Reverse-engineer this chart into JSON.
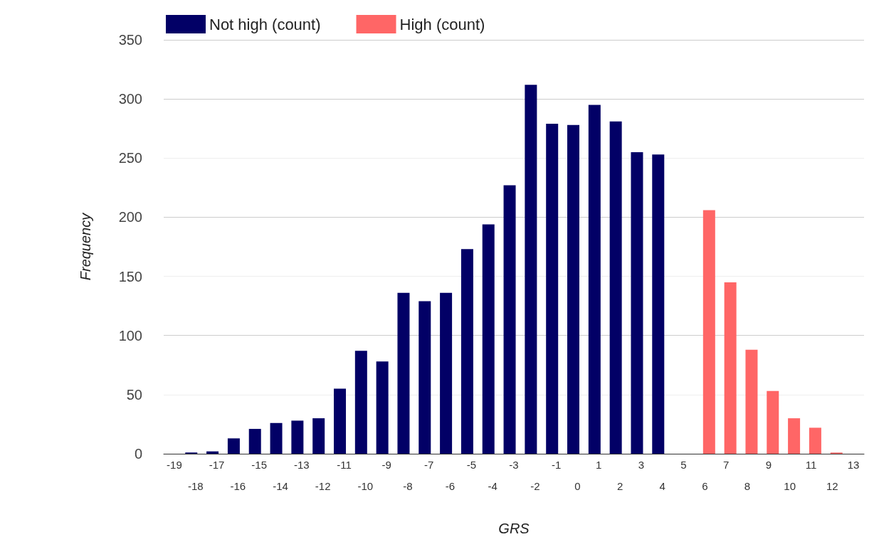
{
  "chart_data": {
    "type": "bar",
    "xlabel": "GRS",
    "ylabel": "Frequency",
    "categories": [
      "-19",
      "-18",
      "-17",
      "-16",
      "-15",
      "-14",
      "-13",
      "-12",
      "-11",
      "-10",
      "-9",
      "-8",
      "-7",
      "-6",
      "-5",
      "-4",
      "-3",
      "-2",
      "-1",
      "0",
      "1",
      "2",
      "3",
      "4",
      "5",
      "6",
      "7",
      "8",
      "9",
      "10",
      "11",
      "12",
      "13"
    ],
    "series": [
      {
        "name": "Not high (count)",
        "color": "#020066",
        "values": [
          null,
          1,
          2,
          13,
          21,
          26,
          28,
          30,
          55,
          87,
          78,
          136,
          129,
          136,
          173,
          194,
          227,
          312,
          279,
          278,
          295,
          281,
          255,
          253,
          null,
          null,
          null,
          null,
          null,
          null,
          null,
          null,
          null
        ]
      },
      {
        "name": "High (count)",
        "color": "#ff6666",
        "values": [
          null,
          null,
          null,
          null,
          null,
          null,
          null,
          null,
          null,
          null,
          null,
          null,
          null,
          null,
          null,
          null,
          null,
          null,
          null,
          null,
          null,
          null,
          null,
          null,
          null,
          206,
          145,
          88,
          53,
          30,
          22,
          1,
          null
        ]
      }
    ],
    "ylim": [
      0,
      350
    ],
    "yticks": [
      0,
      50,
      100,
      150,
      200,
      250,
      300,
      350
    ],
    "grid": "y",
    "legend": "top left"
  }
}
